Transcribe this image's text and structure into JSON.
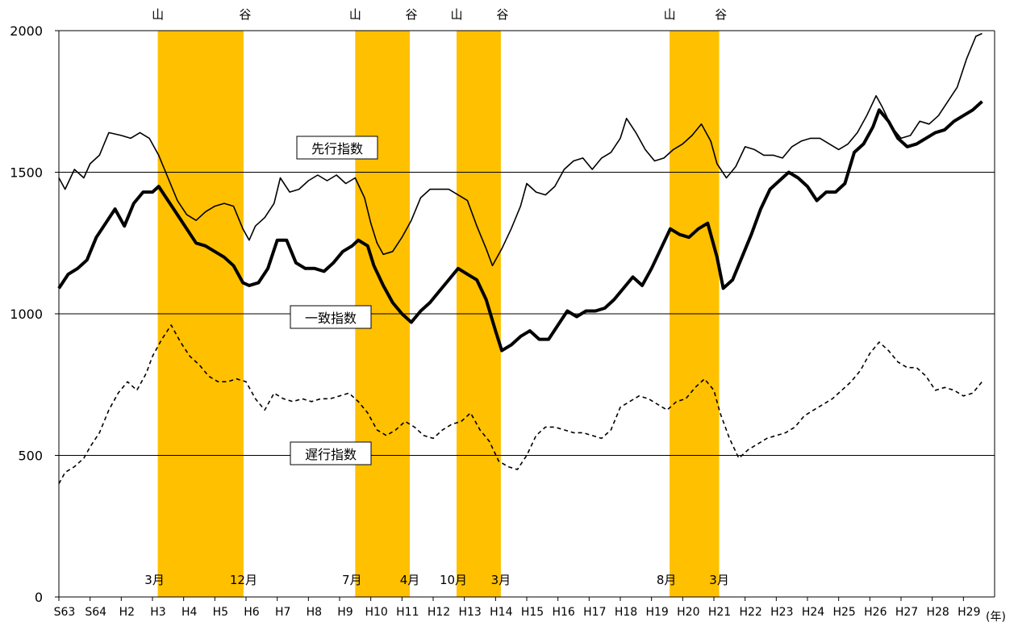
{
  "chart_data": {
    "type": "line",
    "x_unit_label": "(年)",
    "x_ticks": [
      "S63",
      "S64",
      "H2",
      "H3",
      "H4",
      "H5",
      "H6",
      "H7",
      "H8",
      "H9",
      "H10",
      "H11",
      "H12",
      "H13",
      "H14",
      "H15",
      "H16",
      "H17",
      "H18",
      "H19",
      "H20",
      "H21",
      "H22",
      "H23",
      "H24",
      "H25",
      "H26",
      "H27",
      "H28",
      "H29"
    ],
    "y_ticks": [
      "0",
      "500",
      "1000",
      "1500",
      "2000"
    ],
    "ylim": [
      0,
      2000
    ],
    "grid": "horizontal",
    "recession_shading_color": "#FFC000",
    "recessions": [
      {
        "start": 3.17,
        "end": 5.92,
        "peak_label": "山",
        "trough_label": "谷",
        "start_month_label": "3月",
        "end_month_label": "12月"
      },
      {
        "start": 9.5,
        "end": 11.25,
        "peak_label": "山",
        "trough_label": "谷",
        "start_month_label": "7月",
        "end_month_label": "4月"
      },
      {
        "start": 12.75,
        "end": 14.17,
        "peak_label": "山",
        "trough_label": "谷",
        "start_month_label": "10月",
        "end_month_label": "3月"
      },
      {
        "start": 19.58,
        "end": 21.17,
        "peak_label": "山",
        "trough_label": "谷",
        "start_month_label": "8月",
        "end_month_label": "3月"
      }
    ],
    "series": [
      {
        "name": "先行指数",
        "style": "thin",
        "points": [
          [
            0,
            1480
          ],
          [
            0.2,
            1440
          ],
          [
            0.5,
            1510
          ],
          [
            0.8,
            1480
          ],
          [
            1,
            1530
          ],
          [
            1.3,
            1560
          ],
          [
            1.6,
            1640
          ],
          [
            2,
            1630
          ],
          [
            2.3,
            1620
          ],
          [
            2.6,
            1640
          ],
          [
            2.9,
            1620
          ],
          [
            3.2,
            1560
          ],
          [
            3.5,
            1480
          ],
          [
            3.8,
            1400
          ],
          [
            4.1,
            1350
          ],
          [
            4.4,
            1330
          ],
          [
            4.7,
            1360
          ],
          [
            5,
            1380
          ],
          [
            5.3,
            1390
          ],
          [
            5.6,
            1380
          ],
          [
            5.9,
            1300
          ],
          [
            6.1,
            1260
          ],
          [
            6.3,
            1310
          ],
          [
            6.6,
            1340
          ],
          [
            6.9,
            1390
          ],
          [
            7.1,
            1480
          ],
          [
            7.4,
            1430
          ],
          [
            7.7,
            1440
          ],
          [
            8,
            1470
          ],
          [
            8.3,
            1490
          ],
          [
            8.6,
            1470
          ],
          [
            8.9,
            1490
          ],
          [
            9.2,
            1460
          ],
          [
            9.5,
            1480
          ],
          [
            9.8,
            1410
          ],
          [
            10,
            1320
          ],
          [
            10.2,
            1250
          ],
          [
            10.4,
            1210
          ],
          [
            10.7,
            1220
          ],
          [
            11,
            1270
          ],
          [
            11.3,
            1330
          ],
          [
            11.6,
            1410
          ],
          [
            11.9,
            1440
          ],
          [
            12.2,
            1440
          ],
          [
            12.5,
            1440
          ],
          [
            12.8,
            1420
          ],
          [
            13.1,
            1400
          ],
          [
            13.4,
            1310
          ],
          [
            13.7,
            1230
          ],
          [
            13.9,
            1170
          ],
          [
            14.2,
            1230
          ],
          [
            14.5,
            1300
          ],
          [
            14.8,
            1380
          ],
          [
            15,
            1460
          ],
          [
            15.3,
            1430
          ],
          [
            15.6,
            1420
          ],
          [
            15.9,
            1450
          ],
          [
            16.2,
            1510
          ],
          [
            16.5,
            1540
          ],
          [
            16.8,
            1550
          ],
          [
            17.1,
            1510
          ],
          [
            17.4,
            1550
          ],
          [
            17.7,
            1570
          ],
          [
            18,
            1620
          ],
          [
            18.2,
            1690
          ],
          [
            18.5,
            1640
          ],
          [
            18.8,
            1580
          ],
          [
            19.1,
            1540
          ],
          [
            19.4,
            1550
          ],
          [
            19.7,
            1580
          ],
          [
            20,
            1600
          ],
          [
            20.3,
            1630
          ],
          [
            20.6,
            1670
          ],
          [
            20.9,
            1610
          ],
          [
            21.1,
            1530
          ],
          [
            21.4,
            1480
          ],
          [
            21.7,
            1520
          ],
          [
            22,
            1590
          ],
          [
            22.3,
            1580
          ],
          [
            22.6,
            1560
          ],
          [
            22.9,
            1560
          ],
          [
            23.2,
            1550
          ],
          [
            23.5,
            1590
          ],
          [
            23.8,
            1610
          ],
          [
            24.1,
            1620
          ],
          [
            24.4,
            1620
          ],
          [
            24.7,
            1600
          ],
          [
            25,
            1580
          ],
          [
            25.3,
            1600
          ],
          [
            25.6,
            1640
          ],
          [
            25.9,
            1700
          ],
          [
            26.2,
            1770
          ],
          [
            26.4,
            1730
          ],
          [
            26.7,
            1660
          ],
          [
            27,
            1620
          ],
          [
            27.3,
            1630
          ],
          [
            27.6,
            1680
          ],
          [
            27.9,
            1670
          ],
          [
            28.2,
            1700
          ],
          [
            28.5,
            1750
          ],
          [
            28.8,
            1800
          ],
          [
            29.1,
            1900
          ],
          [
            29.4,
            1980
          ],
          [
            29.6,
            1990
          ]
        ]
      },
      {
        "name": "一致指数",
        "style": "thick",
        "points": [
          [
            0,
            1090
          ],
          [
            0.3,
            1140
          ],
          [
            0.6,
            1160
          ],
          [
            0.9,
            1190
          ],
          [
            1.2,
            1270
          ],
          [
            1.5,
            1320
          ],
          [
            1.8,
            1370
          ],
          [
            2.1,
            1310
          ],
          [
            2.4,
            1390
          ],
          [
            2.7,
            1430
          ],
          [
            3,
            1430
          ],
          [
            3.2,
            1450
          ],
          [
            3.5,
            1400
          ],
          [
            3.8,
            1350
          ],
          [
            4.1,
            1300
          ],
          [
            4.4,
            1250
          ],
          [
            4.7,
            1240
          ],
          [
            5,
            1220
          ],
          [
            5.3,
            1200
          ],
          [
            5.6,
            1170
          ],
          [
            5.9,
            1110
          ],
          [
            6.1,
            1100
          ],
          [
            6.4,
            1110
          ],
          [
            6.7,
            1160
          ],
          [
            7,
            1260
          ],
          [
            7.3,
            1260
          ],
          [
            7.6,
            1180
          ],
          [
            7.9,
            1160
          ],
          [
            8.2,
            1160
          ],
          [
            8.5,
            1150
          ],
          [
            8.8,
            1180
          ],
          [
            9.1,
            1220
          ],
          [
            9.4,
            1240
          ],
          [
            9.6,
            1260
          ],
          [
            9.9,
            1240
          ],
          [
            10.1,
            1170
          ],
          [
            10.4,
            1100
          ],
          [
            10.7,
            1040
          ],
          [
            11,
            1000
          ],
          [
            11.3,
            970
          ],
          [
            11.6,
            1010
          ],
          [
            11.9,
            1040
          ],
          [
            12.2,
            1080
          ],
          [
            12.5,
            1120
          ],
          [
            12.8,
            1160
          ],
          [
            13.1,
            1140
          ],
          [
            13.4,
            1120
          ],
          [
            13.7,
            1050
          ],
          [
            14,
            940
          ],
          [
            14.2,
            870
          ],
          [
            14.5,
            890
          ],
          [
            14.8,
            920
          ],
          [
            15.1,
            940
          ],
          [
            15.4,
            910
          ],
          [
            15.7,
            910
          ],
          [
            16,
            960
          ],
          [
            16.3,
            1010
          ],
          [
            16.6,
            990
          ],
          [
            16.9,
            1010
          ],
          [
            17.2,
            1010
          ],
          [
            17.5,
            1020
          ],
          [
            17.8,
            1050
          ],
          [
            18.1,
            1090
          ],
          [
            18.4,
            1130
          ],
          [
            18.7,
            1100
          ],
          [
            19,
            1160
          ],
          [
            19.3,
            1230
          ],
          [
            19.6,
            1300
          ],
          [
            19.9,
            1280
          ],
          [
            20.2,
            1270
          ],
          [
            20.5,
            1300
          ],
          [
            20.8,
            1320
          ],
          [
            21.1,
            1200
          ],
          [
            21.3,
            1090
          ],
          [
            21.6,
            1120
          ],
          [
            21.9,
            1200
          ],
          [
            22.2,
            1280
          ],
          [
            22.5,
            1370
          ],
          [
            22.8,
            1440
          ],
          [
            23.1,
            1470
          ],
          [
            23.4,
            1500
          ],
          [
            23.7,
            1480
          ],
          [
            24,
            1450
          ],
          [
            24.3,
            1400
          ],
          [
            24.6,
            1430
          ],
          [
            24.9,
            1430
          ],
          [
            25.2,
            1460
          ],
          [
            25.5,
            1570
          ],
          [
            25.8,
            1600
          ],
          [
            26.1,
            1660
          ],
          [
            26.3,
            1720
          ],
          [
            26.6,
            1680
          ],
          [
            26.9,
            1620
          ],
          [
            27.2,
            1590
          ],
          [
            27.5,
            1600
          ],
          [
            27.8,
            1620
          ],
          [
            28.1,
            1640
          ],
          [
            28.4,
            1650
          ],
          [
            28.7,
            1680
          ],
          [
            29,
            1700
          ],
          [
            29.3,
            1720
          ],
          [
            29.6,
            1750
          ]
        ]
      },
      {
        "name": "遅行指数",
        "style": "dashed",
        "points": [
          [
            0,
            400
          ],
          [
            0.2,
            440
          ],
          [
            0.5,
            460
          ],
          [
            0.8,
            490
          ],
          [
            1,
            530
          ],
          [
            1.3,
            580
          ],
          [
            1.6,
            660
          ],
          [
            1.9,
            720
          ],
          [
            2.2,
            760
          ],
          [
            2.5,
            730
          ],
          [
            2.8,
            790
          ],
          [
            3,
            850
          ],
          [
            3.3,
            910
          ],
          [
            3.6,
            960
          ],
          [
            3.9,
            900
          ],
          [
            4.2,
            850
          ],
          [
            4.5,
            820
          ],
          [
            4.8,
            780
          ],
          [
            5.1,
            760
          ],
          [
            5.4,
            760
          ],
          [
            5.7,
            770
          ],
          [
            6,
            760
          ],
          [
            6.3,
            700
          ],
          [
            6.6,
            660
          ],
          [
            6.9,
            720
          ],
          [
            7.2,
            700
          ],
          [
            7.5,
            690
          ],
          [
            7.8,
            700
          ],
          [
            8.1,
            690
          ],
          [
            8.4,
            700
          ],
          [
            8.7,
            700
          ],
          [
            9,
            710
          ],
          [
            9.3,
            720
          ],
          [
            9.6,
            690
          ],
          [
            9.9,
            650
          ],
          [
            10.2,
            590
          ],
          [
            10.5,
            570
          ],
          [
            10.8,
            590
          ],
          [
            11.1,
            620
          ],
          [
            11.4,
            600
          ],
          [
            11.7,
            570
          ],
          [
            12,
            560
          ],
          [
            12.3,
            590
          ],
          [
            12.6,
            610
          ],
          [
            12.9,
            620
          ],
          [
            13.2,
            650
          ],
          [
            13.5,
            590
          ],
          [
            13.8,
            550
          ],
          [
            14.1,
            480
          ],
          [
            14.4,
            460
          ],
          [
            14.7,
            450
          ],
          [
            15,
            500
          ],
          [
            15.3,
            570
          ],
          [
            15.6,
            600
          ],
          [
            15.9,
            600
          ],
          [
            16.2,
            590
          ],
          [
            16.5,
            580
          ],
          [
            16.8,
            580
          ],
          [
            17.1,
            570
          ],
          [
            17.4,
            560
          ],
          [
            17.7,
            590
          ],
          [
            18,
            670
          ],
          [
            18.3,
            690
          ],
          [
            18.6,
            710
          ],
          [
            18.9,
            700
          ],
          [
            19.2,
            680
          ],
          [
            19.5,
            660
          ],
          [
            19.8,
            690
          ],
          [
            20.1,
            700
          ],
          [
            20.4,
            740
          ],
          [
            20.7,
            770
          ],
          [
            21,
            730
          ],
          [
            21.2,
            650
          ],
          [
            21.5,
            560
          ],
          [
            21.8,
            490
          ],
          [
            22.1,
            520
          ],
          [
            22.4,
            540
          ],
          [
            22.7,
            560
          ],
          [
            23,
            570
          ],
          [
            23.3,
            580
          ],
          [
            23.6,
            600
          ],
          [
            23.9,
            640
          ],
          [
            24.2,
            660
          ],
          [
            24.5,
            680
          ],
          [
            24.8,
            700
          ],
          [
            25.1,
            730
          ],
          [
            25.4,
            760
          ],
          [
            25.7,
            800
          ],
          [
            26,
            860
          ],
          [
            26.3,
            900
          ],
          [
            26.6,
            870
          ],
          [
            26.9,
            830
          ],
          [
            27.2,
            810
          ],
          [
            27.5,
            810
          ],
          [
            27.8,
            780
          ],
          [
            28.1,
            730
          ],
          [
            28.4,
            740
          ],
          [
            28.7,
            730
          ],
          [
            29,
            710
          ],
          [
            29.3,
            720
          ],
          [
            29.6,
            760
          ]
        ]
      }
    ]
  }
}
